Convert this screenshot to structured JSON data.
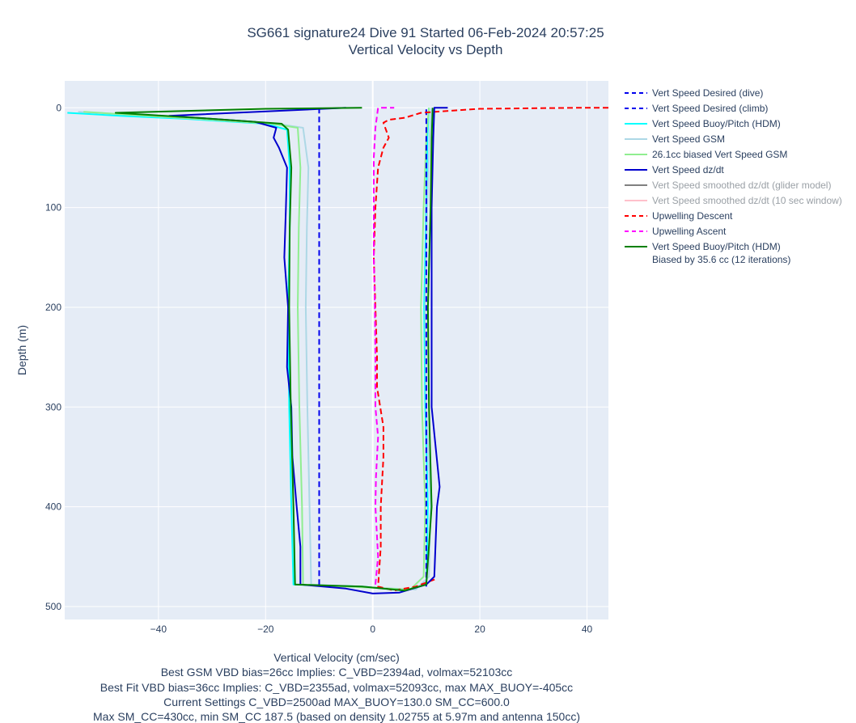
{
  "chart_data": {
    "type": "line",
    "title": "SG661 signature24 Dive 91 Started 06-Feb-2024 20:57:25",
    "subtitle": "Vertical Velocity vs Depth",
    "xlabel": "Vertical Velocity (cm/sec)",
    "ylabel": "Depth (m)",
    "xlim": [
      -57.5,
      44
    ],
    "ylim": [
      513,
      -27
    ],
    "y_reversed": true,
    "grid": true,
    "legend_position": "right",
    "x_ticks": [
      -40,
      -20,
      0,
      20,
      40
    ],
    "x_tick_labels": [
      "−40",
      "−20",
      "0",
      "20",
      "40"
    ],
    "y_ticks": [
      0,
      100,
      200,
      300,
      400,
      500
    ],
    "y_tick_labels": [
      "0",
      "100",
      "200",
      "300",
      "400",
      "500"
    ],
    "notes": [
      "Best GSM VBD bias=26cc Implies: C_VBD=2394ad, volmax=52103cc",
      "Best Fit VBD bias=36cc Implies: C_VBD=2355ad, volmax=52093cc, max MAX_BUOY=-405cc",
      "Current Settings C_VBD=2500ad MAX_BUOY=130.0 SM_CC=600.0",
      "Max SM_CC=430cc, min SM_CC 187.5 (based on density 1.02755 at 5.97m and antenna 150cc)"
    ],
    "series": [
      {
        "name": "Vert Speed Desired (dive)",
        "color": "#0000ee",
        "dash": true,
        "visible": true,
        "points": [
          [
            -10,
            0
          ],
          [
            -10,
            480
          ]
        ]
      },
      {
        "name": "Vert Speed Desired (climb)",
        "color": "#0000ee",
        "dash": true,
        "visible": true,
        "points": [
          [
            10,
            480
          ],
          [
            10,
            0
          ]
        ]
      },
      {
        "name": "Vert Speed Buoy/Pitch (HDM)",
        "color": "#00ffff",
        "dash": false,
        "visible": true,
        "points": [
          [
            -57,
            5
          ],
          [
            -47,
            8
          ],
          [
            -35,
            11
          ],
          [
            -20,
            16
          ],
          [
            -16,
            22
          ],
          [
            -15.5,
            60
          ],
          [
            -15.5,
            120
          ],
          [
            -15.8,
            200
          ],
          [
            -15.6,
            300
          ],
          [
            -15.2,
            400
          ],
          [
            -14.8,
            478
          ],
          [
            -2,
            480
          ],
          [
            6,
            484
          ],
          [
            10,
            478
          ],
          [
            10.3,
            400
          ],
          [
            9.8,
            300
          ],
          [
            9.6,
            200
          ],
          [
            10,
            100
          ],
          [
            10.2,
            30
          ],
          [
            10.5,
            0
          ]
        ]
      },
      {
        "name": "Vert Speed GSM",
        "color": "#add8e6",
        "dash": false,
        "visible": true,
        "points": [
          [
            -55,
            4
          ],
          [
            -42,
            8
          ],
          [
            -30,
            12
          ],
          [
            -18,
            16
          ],
          [
            -13,
            20
          ],
          [
            -12,
            60
          ],
          [
            -12.3,
            120
          ],
          [
            -12.5,
            200
          ],
          [
            -12.2,
            300
          ],
          [
            -11.8,
            400
          ],
          [
            -11.5,
            478
          ],
          [
            0,
            481
          ],
          [
            8,
            483
          ],
          [
            10.5,
            470
          ],
          [
            10.8,
            400
          ],
          [
            10,
            300
          ],
          [
            9.8,
            200
          ],
          [
            10.2,
            100
          ],
          [
            10.6,
            30
          ],
          [
            11,
            0
          ]
        ]
      },
      {
        "name": "26.1cc biased Vert Speed GSM",
        "color": "#90ee90",
        "dash": false,
        "visible": true,
        "points": [
          [
            -54,
            4
          ],
          [
            -42,
            8
          ],
          [
            -30,
            12
          ],
          [
            -19,
            16
          ],
          [
            -14,
            20
          ],
          [
            -13.5,
            60
          ],
          [
            -13.8,
            120
          ],
          [
            -14,
            200
          ],
          [
            -13.7,
            300
          ],
          [
            -13.2,
            400
          ],
          [
            -13,
            478
          ],
          [
            -1,
            481
          ],
          [
            7,
            483
          ],
          [
            9.5,
            470
          ],
          [
            9.8,
            400
          ],
          [
            9.2,
            300
          ],
          [
            9,
            200
          ],
          [
            9.5,
            100
          ],
          [
            10,
            30
          ],
          [
            10.5,
            0
          ]
        ]
      },
      {
        "name": "Vert Speed dz/dt",
        "color": "#0000cd",
        "dash": false,
        "visible": true,
        "points": [
          [
            -5,
            0
          ],
          [
            -38,
            8
          ],
          [
            -22,
            14
          ],
          [
            -18,
            20
          ],
          [
            -18.5,
            30
          ],
          [
            -17.5,
            40
          ],
          [
            -16,
            60
          ],
          [
            -16.2,
            100
          ],
          [
            -16.5,
            150
          ],
          [
            -15.8,
            200
          ],
          [
            -16,
            260
          ],
          [
            -15.2,
            300
          ],
          [
            -15,
            350
          ],
          [
            -14.2,
            400
          ],
          [
            -13.5,
            440
          ],
          [
            -13.5,
            478
          ],
          [
            -5,
            482
          ],
          [
            0,
            487
          ],
          [
            5,
            486
          ],
          [
            10,
            478
          ],
          [
            11.5,
            470
          ],
          [
            12,
            400
          ],
          [
            12.5,
            380
          ],
          [
            11,
            300
          ],
          [
            11,
            200
          ],
          [
            11,
            100
          ],
          [
            11.3,
            30
          ],
          [
            11.5,
            0
          ],
          [
            14,
            0
          ]
        ]
      },
      {
        "name": "Vert Speed smoothed dz/dt (glider model)",
        "color": "#808080",
        "dash": false,
        "visible": false,
        "points": []
      },
      {
        "name": "Vert Speed smoothed dz/dt (10 sec window)",
        "color": "#ffc0cb",
        "dash": false,
        "visible": false,
        "points": []
      },
      {
        "name": "Upwelling Descent",
        "color": "#ff0000",
        "dash": true,
        "visible": true,
        "points": [
          [
            44,
            0
          ],
          [
            38,
            0
          ],
          [
            20,
            1
          ],
          [
            9,
            5
          ],
          [
            6,
            10
          ],
          [
            3,
            12
          ],
          [
            2,
            15
          ],
          [
            3,
            30
          ],
          [
            2,
            40
          ],
          [
            1,
            60
          ],
          [
            0.5,
            100
          ],
          [
            0.2,
            150
          ],
          [
            0.5,
            200
          ],
          [
            0.8,
            250
          ],
          [
            0.8,
            280
          ],
          [
            2,
            320
          ],
          [
            2,
            350
          ],
          [
            1.5,
            400
          ],
          [
            1.5,
            440
          ],
          [
            1,
            480
          ],
          [
            4,
            484
          ],
          [
            8,
            480
          ],
          [
            12,
            472
          ]
        ]
      },
      {
        "name": "Upwelling Ascent",
        "color": "#ff00ff",
        "dash": true,
        "visible": true,
        "points": [
          [
            0.5,
            478
          ],
          [
            1,
            450
          ],
          [
            0.5,
            400
          ],
          [
            0.6,
            370
          ],
          [
            1,
            330
          ],
          [
            0.5,
            300
          ],
          [
            0.5,
            250
          ],
          [
            0.4,
            200
          ],
          [
            0.2,
            150
          ],
          [
            0.2,
            100
          ],
          [
            0.2,
            50
          ],
          [
            0.5,
            20
          ],
          [
            1,
            0
          ],
          [
            4,
            0
          ]
        ]
      },
      {
        "name": "Vert Speed Buoy/Pitch (HDM) Biased by 35.6 cc (12 iterations)",
        "label_lines": [
          "Vert Speed Buoy/Pitch (HDM)",
          "Biased by 35.6 cc (12 iterations)"
        ],
        "color": "#008000",
        "dash": false,
        "visible": true,
        "points": [
          [
            -2,
            0
          ],
          [
            -20,
            1
          ],
          [
            -48,
            5
          ],
          [
            -33,
            10
          ],
          [
            -17,
            16
          ],
          [
            -15.8,
            22
          ],
          [
            -15.2,
            60
          ],
          [
            -15.5,
            120
          ],
          [
            -15.6,
            200
          ],
          [
            -15.3,
            300
          ],
          [
            -14.8,
            400
          ],
          [
            -14.5,
            478
          ],
          [
            -2,
            480
          ],
          [
            6,
            484
          ],
          [
            10,
            478
          ],
          [
            11,
            400
          ],
          [
            10.5,
            300
          ],
          [
            10.3,
            200
          ],
          [
            10.8,
            100
          ],
          [
            11,
            30
          ],
          [
            11.2,
            0
          ]
        ]
      }
    ]
  }
}
